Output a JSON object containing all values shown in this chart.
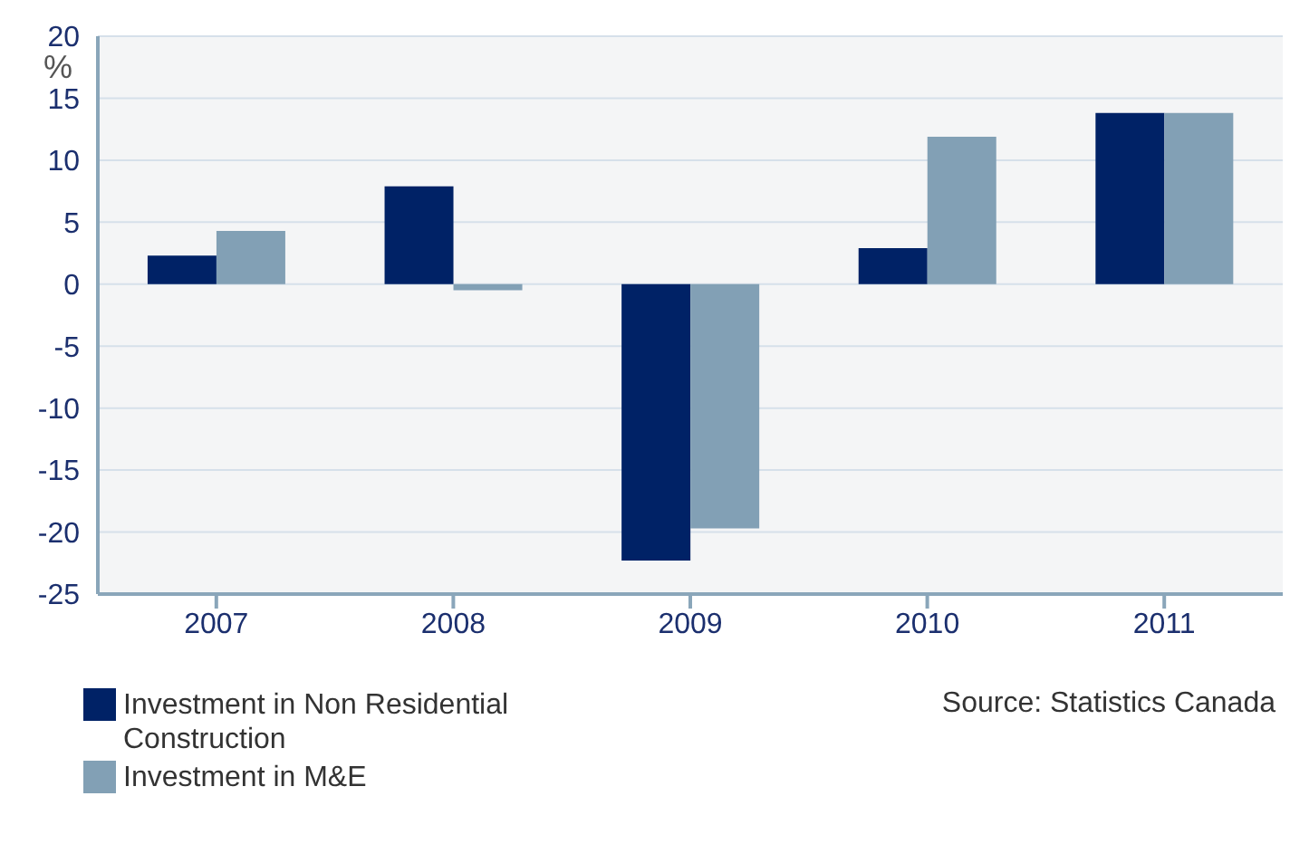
{
  "chart_data": {
    "type": "bar",
    "ylabel": "%",
    "categories": [
      "2007",
      "2008",
      "2009",
      "2010",
      "2011"
    ],
    "series": [
      {
        "name": "Investment in Non Residential Construction",
        "color": "#002266",
        "values": [
          2.3,
          7.9,
          -22.3,
          2.9,
          13.8
        ]
      },
      {
        "name": "Investment in M&E",
        "color": "#82a0b5",
        "values": [
          4.3,
          -0.5,
          -19.7,
          11.9,
          13.8
        ]
      }
    ],
    "ylim": [
      -25,
      20
    ],
    "yticks": [
      -25,
      -20,
      -15,
      -10,
      -5,
      0,
      5,
      10,
      15,
      20
    ],
    "grid": "y",
    "legend": "bottom left",
    "annotations": [
      "Source: Statistics Canada"
    ]
  }
}
